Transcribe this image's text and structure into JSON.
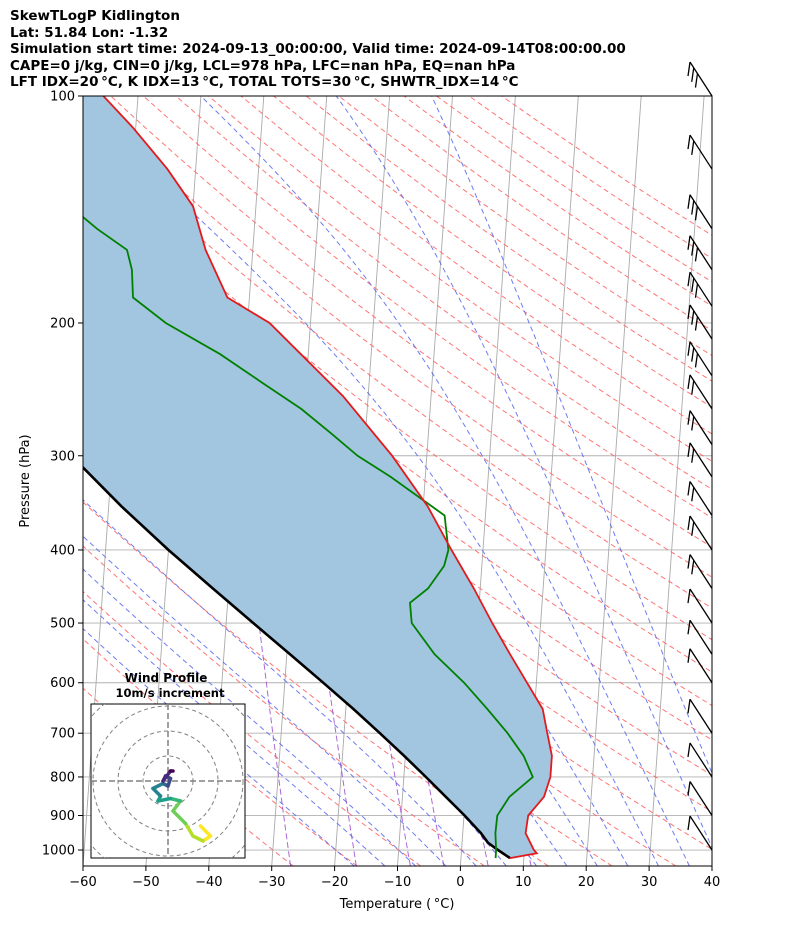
{
  "header": {
    "lines": [
      "SkewTLogP Kidlington",
      "Lat: 51.84   Lon: -1.32",
      "Simulation start time: 2024-09-13_00:00:00, Valid time: 2024-09-14T08:00:00.00",
      "CAPE=0 j/kg, CIN=0 j/kg, LCL=978 hPa, LFC=nan hPa, EQ=nan hPa",
      "LFT IDX=20 °C, K IDX=13 °C, TOTAL TOTS=30 °C, SHWTR_IDX=14 °C"
    ]
  },
  "chart_data": {
    "type": "skew-t log-p",
    "xlabel": "Temperature ( °C)",
    "ylabel": "Pressure (hPa)",
    "xlim": [
      -60,
      40
    ],
    "ylim": [
      1050,
      100
    ],
    "x_ticks": [
      -60,
      -50,
      -40,
      -30,
      -20,
      -10,
      0,
      10,
      20,
      30,
      40
    ],
    "y_ticks": [
      100,
      200,
      300,
      400,
      500,
      600,
      700,
      800,
      900,
      1000
    ],
    "grid": true,
    "colors": {
      "temperature": "#e31a1c",
      "dewpoint": "#008000",
      "parcel": "#000000",
      "shading": "#a3c6e0",
      "dry_adiabats": "#ff6666",
      "moist_adiabats": "#5566ee",
      "mixing_ratio": "#9944cc",
      "isotherms": "#aaaaaa"
    },
    "temperature": {
      "pressure": [
        1025,
        1010,
        1000,
        950,
        900,
        850,
        800,
        750,
        700,
        650,
        600,
        550,
        500,
        450,
        400,
        350,
        300,
        250,
        200,
        185,
        160,
        140,
        125,
        110,
        100
      ],
      "values": [
        7.8,
        12.0,
        11.5,
        10.0,
        10.2,
        12.5,
        13.3,
        13.3,
        12.3,
        11.3,
        8.5,
        5.5,
        2.3,
        -1.0,
        -5.0,
        -9.3,
        -15.5,
        -24.0,
        -36.5,
        -43.5,
        -47.5,
        -50.0,
        -54.5,
        -60.5,
        -65.5
      ]
    },
    "dewpoint": {
      "pressure": [
        1025,
        1000,
        950,
        900,
        850,
        800,
        750,
        700,
        650,
        600,
        550,
        500,
        470,
        450,
        420,
        400,
        360,
        320,
        300,
        280,
        260,
        240,
        220,
        200,
        185,
        170,
        160,
        150,
        135,
        125,
        110,
        100
      ],
      "values": [
        5.5,
        5.5,
        5.2,
        5.3,
        7.0,
        10.5,
        8.8,
        6.0,
        2.5,
        -1.5,
        -6.5,
        -10.5,
        -11.0,
        -8.3,
        -6.0,
        -5.5,
        -6.5,
        -15.5,
        -21.0,
        -25.5,
        -30.5,
        -37.0,
        -44.0,
        -53.0,
        -58.5,
        -59.0,
        -60.0,
        -65.0,
        -72.0,
        -72.0,
        -70.5,
        -70.5
      ]
    },
    "parcel": {
      "pressure": [
        1025,
        1000,
        978,
        950,
        900,
        850,
        800,
        750,
        700,
        650,
        600,
        550,
        500,
        450,
        400,
        350,
        300,
        250,
        200,
        150,
        100
      ],
      "values": [
        7.8,
        5.8,
        4.1,
        2.9,
        0.1,
        -3.1,
        -6.5,
        -10.2,
        -14.3,
        -18.8,
        -23.9,
        -29.5,
        -35.7,
        -42.5,
        -50.0,
        -58.0,
        -66.5,
        -75.0,
        -84.0,
        -93.0,
        -103.0
      ]
    },
    "wind_profile_inset": {
      "title": "Wind Profile",
      "subtitle": "10m/s increment",
      "u": [
        13,
        17,
        14,
        10,
        7,
        2,
        5,
        1,
        -4,
        -3,
        -6,
        -2,
        0,
        1,
        -1,
        -2,
        1,
        2
      ],
      "v": [
        -18,
        -22,
        -24,
        -22,
        -17,
        -12,
        -8,
        -7,
        -8,
        -6,
        -3,
        -1,
        -2,
        1,
        2,
        0,
        4,
        4
      ]
    }
  }
}
